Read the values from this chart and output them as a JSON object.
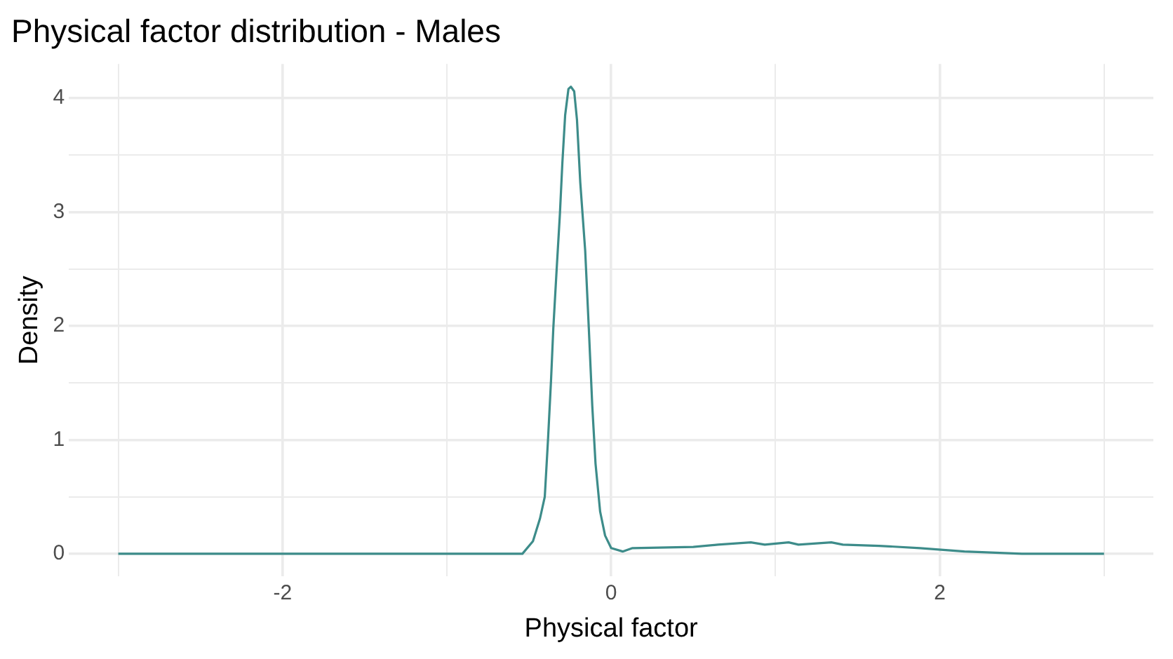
{
  "chart_data": {
    "type": "line",
    "title": "Physical factor distribution - Males",
    "xlabel": "Physical factor",
    "ylabel": "Density",
    "x": [
      -3,
      -1.5,
      -0.54,
      -0.476,
      -0.433,
      -0.404,
      -0.384,
      -0.366,
      -0.352,
      -0.332,
      -0.312,
      -0.297,
      -0.28,
      -0.26,
      -0.245,
      -0.225,
      -0.208,
      -0.188,
      -0.158,
      -0.136,
      -0.115,
      -0.095,
      -0.067,
      -0.037,
      0.0,
      0.07,
      0.13,
      0.5,
      0.65,
      0.85,
      0.935,
      1.08,
      1.14,
      1.34,
      1.41,
      1.63,
      1.88,
      2.15,
      2.5,
      3.0
    ],
    "series": [
      {
        "color": "#3d8c8a",
        "values": [
          0,
          0,
          0,
          0.11,
          0.31,
          0.5,
          1.01,
          1.52,
          1.98,
          2.49,
          2.98,
          3.43,
          3.85,
          4.08,
          4.1,
          4.06,
          3.81,
          3.26,
          2.66,
          1.98,
          1.3,
          0.79,
          0.37,
          0.16,
          0.05,
          0.02,
          0.05,
          0.06,
          0.08,
          0.1,
          0.08,
          0.1,
          0.08,
          0.1,
          0.08,
          0.07,
          0.05,
          0.02,
          0,
          0
        ]
      }
    ],
    "xlim": [
      -3.3,
      3.3
    ],
    "ylim": [
      -0.2,
      4.3
    ],
    "xticks": [
      {
        "value": -3,
        "label": null
      },
      -2,
      {
        "value": -1,
        "label": null
      },
      0,
      {
        "value": 1,
        "label": null
      },
      2,
      {
        "value": 3,
        "label": null
      }
    ],
    "yticks": [
      0,
      {
        "value": 0.5,
        "label": null
      },
      1,
      {
        "value": 1.5,
        "label": null
      },
      2,
      {
        "value": 2.5,
        "label": null
      },
      3,
      {
        "value": 3.5,
        "label": null
      },
      4
    ],
    "grid": true,
    "legend": false,
    "marker": "none",
    "line_style": "solid"
  }
}
